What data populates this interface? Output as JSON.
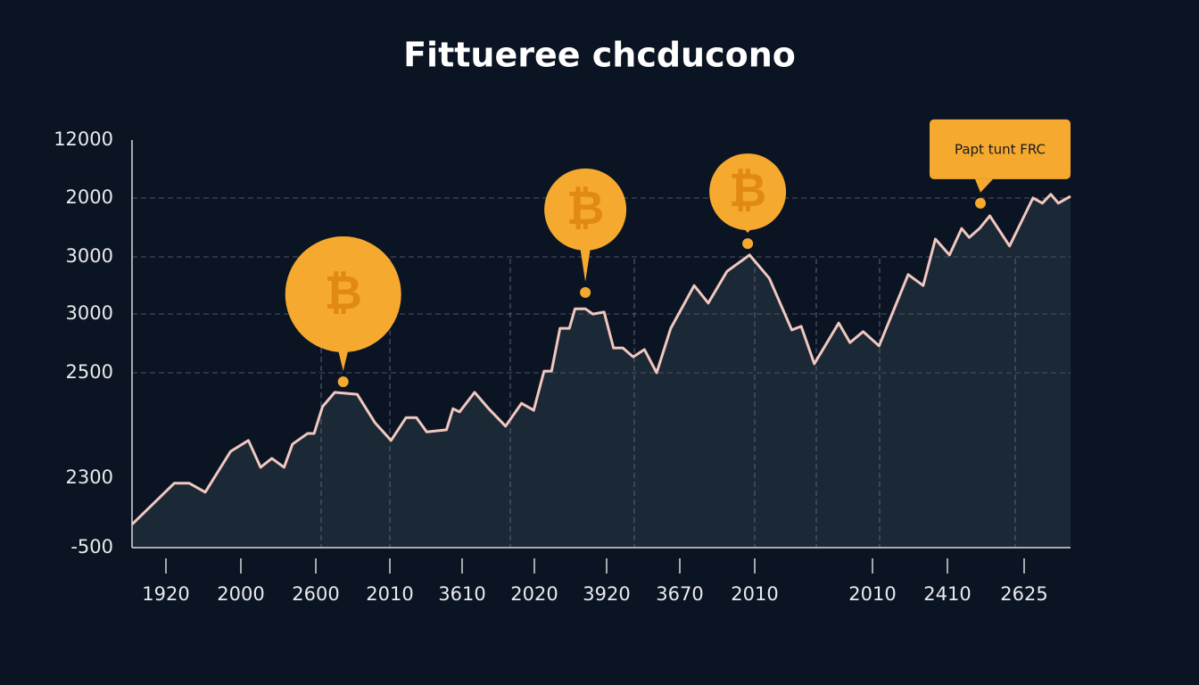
{
  "chart_data": {
    "type": "line",
    "title": "Fittueree chcducono",
    "y_labels": [
      "12000",
      "2000",
      "3000",
      "3000",
      "2500",
      "2300",
      "-500"
    ],
    "x_labels": [
      "1920",
      "2000",
      "2600",
      "2010",
      "3610",
      "2020",
      "3920",
      "3670",
      "2010",
      "2010",
      "2410",
      "2625"
    ],
    "xlim": [
      0,
      100
    ],
    "ylim": [
      0,
      100
    ],
    "color": "#f1c8c0",
    "fill": "#1f2b3a",
    "x": [
      0,
      4.5,
      6.1,
      7.8,
      10.5,
      12.4,
      13.7,
      14.9,
      16.2,
      17.1,
      18.7,
      19.4,
      20.3,
      21.6,
      24.0,
      25.9,
      27.6,
      29.2,
      30.3,
      31.4,
      33.5,
      34.2,
      34.9,
      36.5,
      38.0,
      39.8,
      41.5,
      42.8,
      43.9,
      44.7,
      45.6,
      46.6,
      47.2,
      48.3,
      49.1,
      50.3,
      51.3,
      52.3,
      53.4,
      54.6,
      55.9,
      57.4,
      59.9,
      61.4,
      63.4,
      65.8,
      67.9,
      70.3,
      71.3,
      72.7,
      75.3,
      76.5,
      77.9,
      79.6,
      82.7,
      84.3,
      85.6,
      87.1,
      88.4,
      89.2,
      90.3,
      91.4,
      93.5,
      96.0,
      97.0,
      97.9,
      98.7,
      100
    ],
    "values": [
      5.7,
      15.8,
      15.8,
      13.6,
      23.6,
      26.3,
      19.7,
      21.9,
      19.7,
      25.4,
      28.0,
      28.0,
      34.6,
      38.1,
      37.6,
      30.6,
      26.3,
      31.9,
      31.9,
      28.4,
      28.9,
      34.1,
      33.3,
      38.1,
      34.1,
      29.8,
      35.4,
      33.7,
      43.3,
      43.3,
      53.8,
      53.8,
      58.6,
      58.6,
      57.3,
      57.8,
      49.0,
      49.0,
      46.8,
      48.6,
      42.9,
      53.8,
      64.3,
      60.0,
      67.8,
      71.8,
      66.1,
      53.4,
      54.3,
      45.1,
      55.1,
      50.3,
      53.0,
      49.5,
      67.0,
      64.3,
      75.7,
      71.8,
      78.3,
      76.1,
      78.3,
      81.4,
      74.0,
      85.8,
      84.5,
      86.7,
      84.5,
      86.2
    ],
    "marker_symbol": "₿",
    "marker_color": "#f6a92f",
    "annotations": [
      {
        "x": 22.5,
        "y": 40.7
      },
      {
        "x": 48.3,
        "y": 62.6
      },
      {
        "x": 65.6,
        "y": 74.6
      },
      {
        "x": 90.4,
        "y": 84.5,
        "label": "Papt tunt FRC"
      }
    ]
  }
}
